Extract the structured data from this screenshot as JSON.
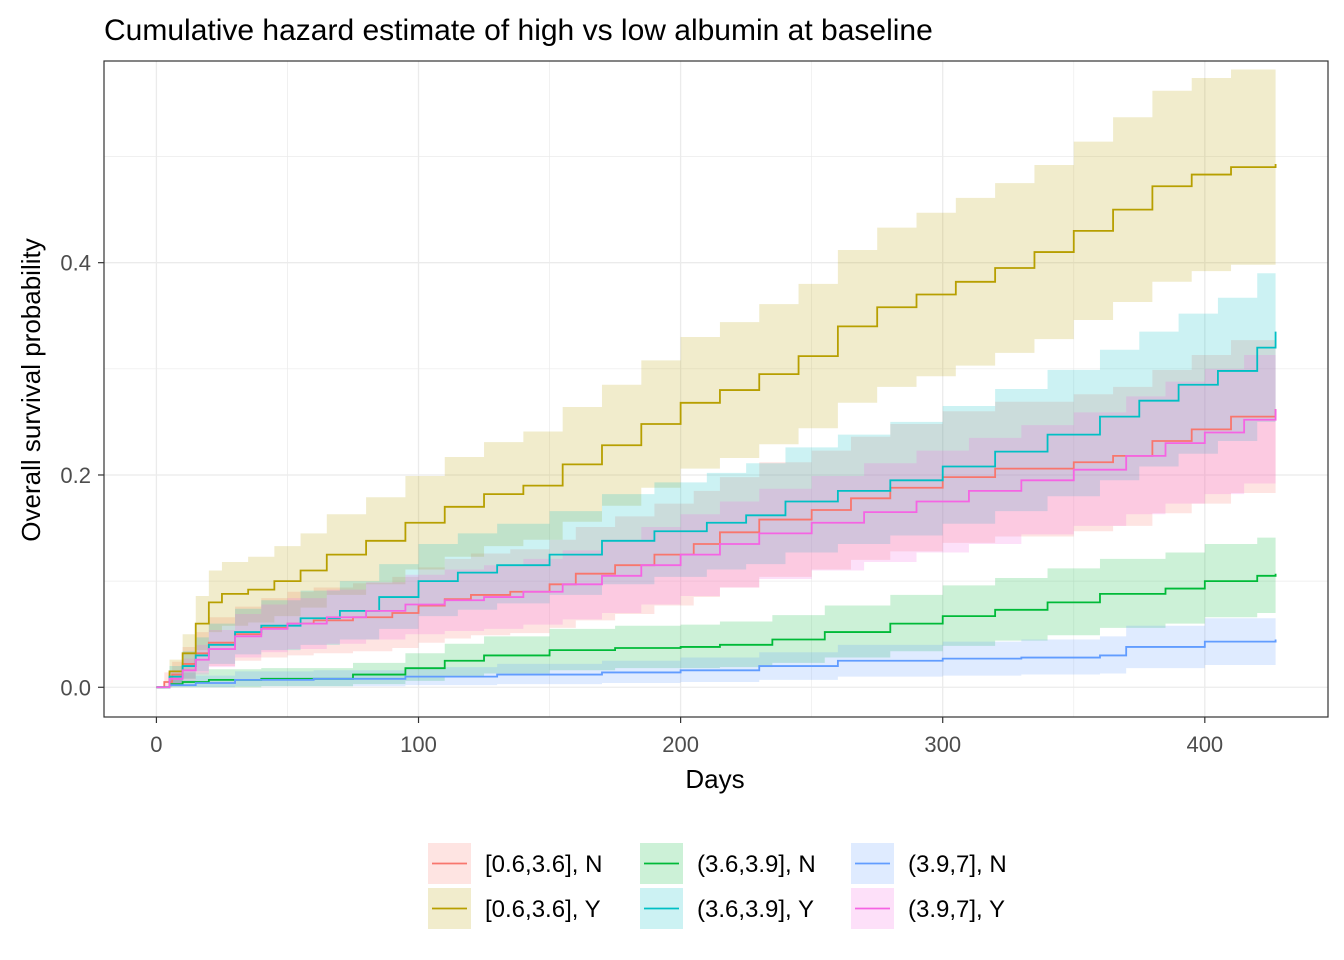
{
  "chart_data": {
    "type": "line",
    "step": true,
    "title": "Cumulative hazard estimate of high vs low albumin at baseline",
    "xlabel": "Days",
    "ylabel": "Overall survival probability",
    "xlim": [
      -20,
      447
    ],
    "ylim": [
      -0.028,
      0.59
    ],
    "xticks": [
      0,
      100,
      200,
      300,
      400
    ],
    "xtick_labels": [
      "0",
      "100",
      "200",
      "300",
      "400"
    ],
    "yticks": [
      0.0,
      0.2,
      0.4
    ],
    "ytick_labels": [
      "0.0",
      "0.2",
      "0.4"
    ],
    "grid": true,
    "legend_position": "bottom",
    "series": [
      {
        "name": "[0.6,3.6], N",
        "color": "#F8766D",
        "x": [
          0,
          3,
          6,
          10,
          15,
          20,
          30,
          40,
          50,
          60,
          75,
          90,
          100,
          110,
          120,
          135,
          150,
          160,
          175,
          190,
          205,
          215,
          230,
          250,
          265,
          280,
          300,
          320,
          350,
          365,
          380,
          395,
          410,
          427
        ],
        "y": [
          0,
          0.005,
          0.012,
          0.022,
          0.032,
          0.042,
          0.05,
          0.056,
          0.06,
          0.063,
          0.066,
          0.07,
          0.077,
          0.083,
          0.087,
          0.09,
          0.097,
          0.107,
          0.115,
          0.125,
          0.135,
          0.146,
          0.158,
          0.167,
          0.178,
          0.188,
          0.198,
          0.206,
          0.212,
          0.218,
          0.232,
          0.243,
          0.255,
          0.262
        ],
        "lower": [
          0,
          0,
          0.002,
          0.008,
          0.014,
          0.02,
          0.025,
          0.028,
          0.03,
          0.032,
          0.034,
          0.037,
          0.042,
          0.046,
          0.049,
          0.051,
          0.056,
          0.063,
          0.069,
          0.077,
          0.085,
          0.094,
          0.104,
          0.111,
          0.12,
          0.128,
          0.136,
          0.142,
          0.147,
          0.152,
          0.164,
          0.173,
          0.183,
          0.195
        ],
        "upper": [
          0,
          0.014,
          0.024,
          0.038,
          0.052,
          0.066,
          0.076,
          0.084,
          0.09,
          0.094,
          0.098,
          0.104,
          0.113,
          0.121,
          0.126,
          0.13,
          0.139,
          0.151,
          0.161,
          0.173,
          0.185,
          0.198,
          0.212,
          0.223,
          0.236,
          0.248,
          0.26,
          0.269,
          0.276,
          0.283,
          0.299,
          0.313,
          0.327,
          0.335
        ]
      },
      {
        "name": "[0.6,3.6], Y",
        "color": "#B79F00",
        "x": [
          0,
          5,
          10,
          15,
          20,
          25,
          35,
          45,
          55,
          65,
          80,
          95,
          110,
          125,
          140,
          155,
          170,
          185,
          200,
          215,
          230,
          245,
          260,
          275,
          290,
          305,
          320,
          335,
          350,
          365,
          380,
          395,
          410,
          427
        ],
        "y": [
          0,
          0.015,
          0.032,
          0.06,
          0.08,
          0.088,
          0.092,
          0.1,
          0.11,
          0.125,
          0.138,
          0.155,
          0.17,
          0.182,
          0.19,
          0.21,
          0.228,
          0.248,
          0.268,
          0.28,
          0.295,
          0.312,
          0.34,
          0.358,
          0.37,
          0.382,
          0.395,
          0.41,
          0.43,
          0.45,
          0.472,
          0.483,
          0.49,
          0.493
        ],
        "lower": [
          0,
          0.004,
          0.015,
          0.035,
          0.052,
          0.058,
          0.061,
          0.067,
          0.075,
          0.087,
          0.097,
          0.111,
          0.123,
          0.133,
          0.139,
          0.156,
          0.171,
          0.188,
          0.206,
          0.216,
          0.229,
          0.244,
          0.268,
          0.283,
          0.293,
          0.303,
          0.315,
          0.328,
          0.346,
          0.363,
          0.382,
          0.392,
          0.398,
          0.42
        ],
        "upper": [
          0,
          0.026,
          0.05,
          0.086,
          0.11,
          0.118,
          0.123,
          0.133,
          0.145,
          0.163,
          0.179,
          0.199,
          0.217,
          0.231,
          0.241,
          0.264,
          0.285,
          0.308,
          0.33,
          0.344,
          0.361,
          0.38,
          0.412,
          0.433,
          0.447,
          0.461,
          0.475,
          0.492,
          0.514,
          0.537,
          0.562,
          0.574,
          0.582,
          0.566
        ]
      },
      {
        "name": "(3.6,3.9], N",
        "color": "#00BA38",
        "x": [
          0,
          5,
          10,
          20,
          40,
          60,
          75,
          95,
          110,
          125,
          150,
          175,
          200,
          215,
          235,
          255,
          280,
          300,
          320,
          340,
          360,
          385,
          400,
          420,
          427
        ],
        "y": [
          0,
          0.003,
          0.005,
          0.007,
          0.008,
          0.008,
          0.012,
          0.018,
          0.025,
          0.03,
          0.035,
          0.037,
          0.038,
          0.04,
          0.045,
          0.052,
          0.06,
          0.067,
          0.073,
          0.08,
          0.088,
          0.093,
          0.1,
          0.105,
          0.107
        ],
        "lower": [
          0,
          0,
          0,
          0,
          0.001,
          0.001,
          0.003,
          0.006,
          0.01,
          0.013,
          0.016,
          0.018,
          0.018,
          0.019,
          0.023,
          0.028,
          0.034,
          0.039,
          0.044,
          0.049,
          0.056,
          0.06,
          0.066,
          0.07,
          0.071
        ],
        "upper": [
          0,
          0.01,
          0.014,
          0.017,
          0.018,
          0.018,
          0.023,
          0.032,
          0.041,
          0.048,
          0.055,
          0.058,
          0.059,
          0.062,
          0.068,
          0.077,
          0.087,
          0.096,
          0.103,
          0.112,
          0.121,
          0.127,
          0.135,
          0.141,
          0.15
        ]
      },
      {
        "name": "(3.6,3.9], Y",
        "color": "#00BFC4",
        "x": [
          0,
          5,
          10,
          15,
          20,
          30,
          40,
          55,
          70,
          85,
          100,
          115,
          130,
          150,
          170,
          190,
          210,
          225,
          240,
          260,
          280,
          300,
          320,
          340,
          360,
          375,
          390,
          405,
          420,
          427
        ],
        "y": [
          0,
          0.01,
          0.02,
          0.03,
          0.04,
          0.052,
          0.058,
          0.065,
          0.072,
          0.085,
          0.1,
          0.108,
          0.115,
          0.125,
          0.138,
          0.147,
          0.155,
          0.162,
          0.175,
          0.185,
          0.195,
          0.208,
          0.222,
          0.238,
          0.255,
          0.27,
          0.285,
          0.298,
          0.32,
          0.335
        ],
        "lower": [
          0,
          0.002,
          0.008,
          0.015,
          0.022,
          0.031,
          0.035,
          0.04,
          0.045,
          0.055,
          0.067,
          0.073,
          0.079,
          0.087,
          0.097,
          0.104,
          0.111,
          0.116,
          0.127,
          0.135,
          0.143,
          0.154,
          0.166,
          0.18,
          0.195,
          0.208,
          0.22,
          0.232,
          0.25,
          0.265
        ],
        "upper": [
          0,
          0.02,
          0.034,
          0.047,
          0.06,
          0.074,
          0.082,
          0.091,
          0.1,
          0.116,
          0.135,
          0.145,
          0.154,
          0.166,
          0.182,
          0.193,
          0.202,
          0.211,
          0.226,
          0.238,
          0.25,
          0.265,
          0.281,
          0.299,
          0.318,
          0.335,
          0.352,
          0.367,
          0.39,
          0.4
        ]
      },
      {
        "name": "(3.9,7], N",
        "color": "#619CFF",
        "x": [
          0,
          5,
          15,
          30,
          60,
          95,
          130,
          170,
          200,
          230,
          260,
          300,
          330,
          360,
          370,
          400,
          427
        ],
        "y": [
          0,
          0.002,
          0.004,
          0.007,
          0.008,
          0.01,
          0.012,
          0.014,
          0.016,
          0.02,
          0.025,
          0.027,
          0.028,
          0.03,
          0.038,
          0.043,
          0.045
        ],
        "lower": [
          0,
          0,
          0,
          0.001,
          0.001,
          0.002,
          0.003,
          0.004,
          0.005,
          0.007,
          0.01,
          0.011,
          0.012,
          0.013,
          0.018,
          0.021,
          0.023
        ],
        "upper": [
          0,
          0.007,
          0.011,
          0.015,
          0.016,
          0.019,
          0.022,
          0.025,
          0.028,
          0.033,
          0.04,
          0.043,
          0.045,
          0.048,
          0.058,
          0.065,
          0.067
        ]
      },
      {
        "name": "(3.9,7], Y",
        "color": "#F564E3",
        "x": [
          0,
          5,
          10,
          15,
          20,
          30,
          40,
          50,
          65,
          80,
          95,
          110,
          125,
          140,
          155,
          170,
          185,
          200,
          215,
          230,
          250,
          270,
          290,
          310,
          330,
          350,
          370,
          385,
          400,
          415,
          427
        ],
        "y": [
          0,
          0.008,
          0.016,
          0.026,
          0.036,
          0.048,
          0.055,
          0.06,
          0.066,
          0.072,
          0.078,
          0.082,
          0.085,
          0.09,
          0.097,
          0.105,
          0.115,
          0.125,
          0.135,
          0.145,
          0.155,
          0.165,
          0.175,
          0.185,
          0.195,
          0.205,
          0.218,
          0.23,
          0.24,
          0.252,
          0.262
        ],
        "lower": [
          0,
          0.002,
          0.006,
          0.012,
          0.019,
          0.028,
          0.033,
          0.036,
          0.041,
          0.045,
          0.05,
          0.053,
          0.055,
          0.059,
          0.064,
          0.07,
          0.078,
          0.086,
          0.094,
          0.102,
          0.11,
          0.118,
          0.127,
          0.135,
          0.144,
          0.152,
          0.163,
          0.173,
          0.182,
          0.192,
          0.2
        ],
        "upper": [
          0,
          0.016,
          0.027,
          0.04,
          0.054,
          0.069,
          0.078,
          0.084,
          0.092,
          0.099,
          0.106,
          0.111,
          0.115,
          0.121,
          0.129,
          0.139,
          0.151,
          0.163,
          0.175,
          0.187,
          0.199,
          0.211,
          0.223,
          0.235,
          0.247,
          0.259,
          0.274,
          0.288,
          0.3,
          0.313,
          0.325
        ]
      }
    ]
  }
}
